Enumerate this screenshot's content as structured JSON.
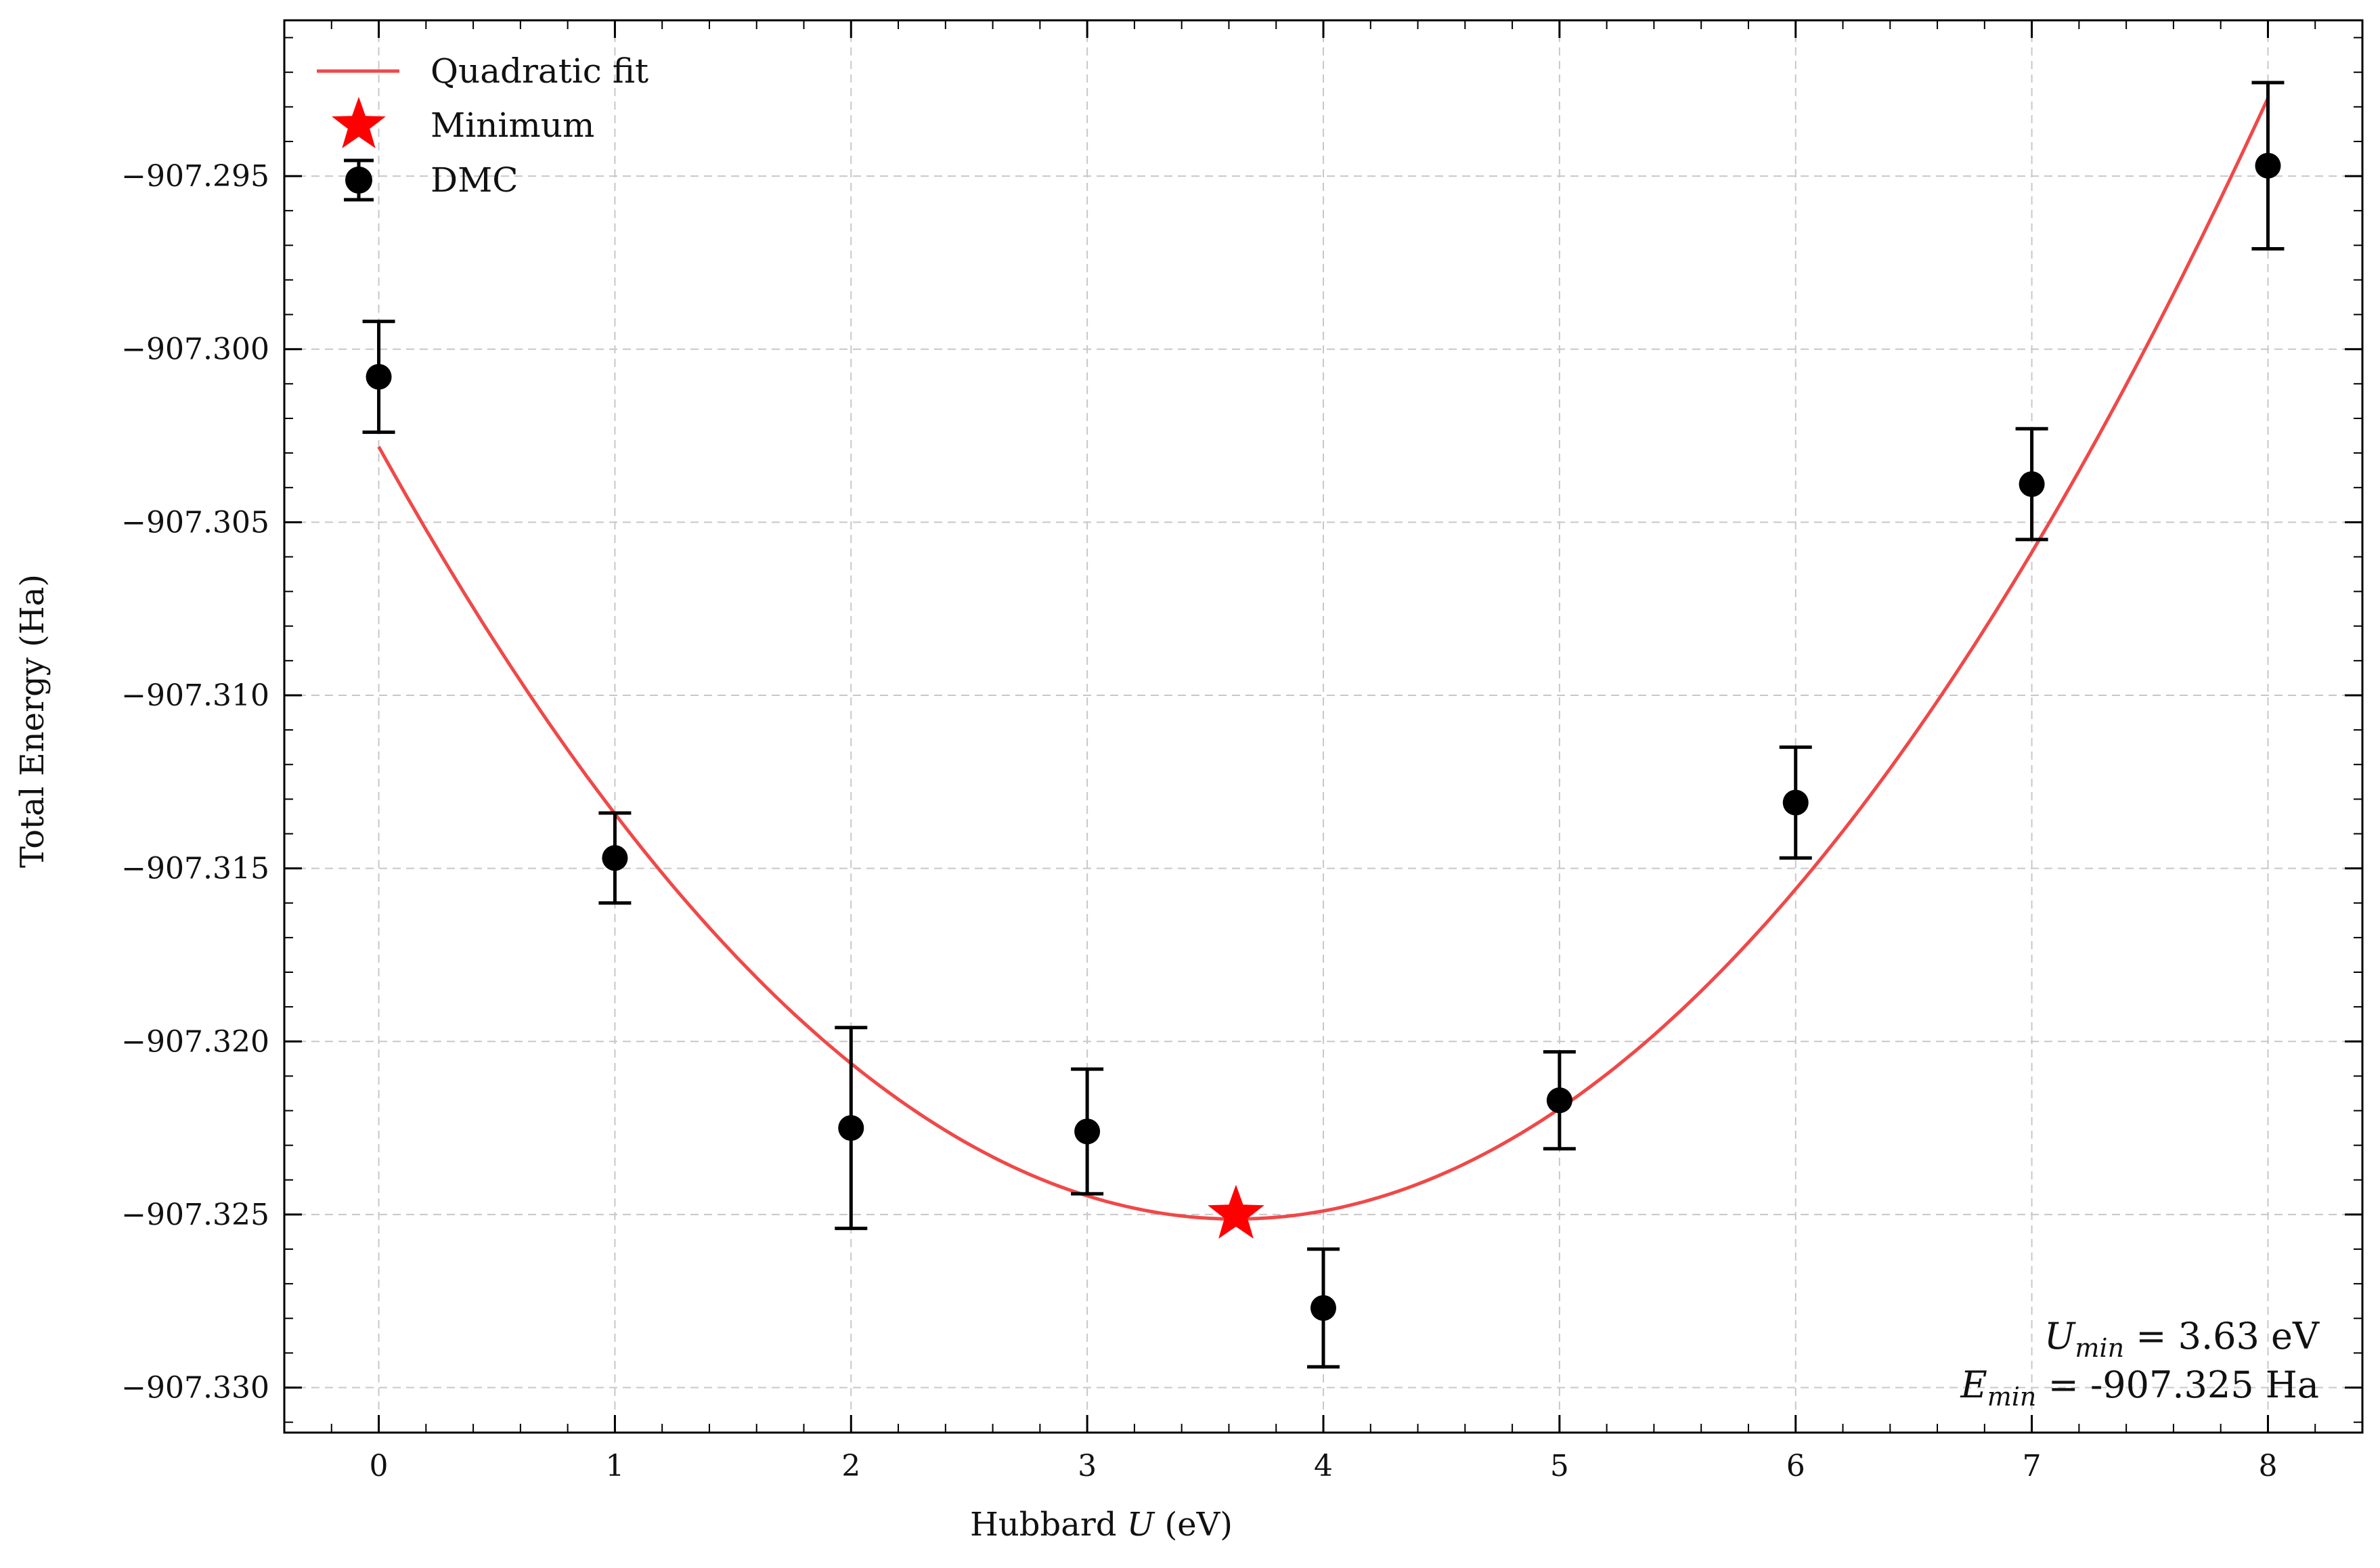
{
  "chart_data": {
    "type": "scatter",
    "xlabel_prefix": "Hubbard ",
    "xlabel_var": "U",
    "xlabel_suffix": " (eV)",
    "ylabel": "Total Energy (Ha)",
    "xlim": [
      -0.4,
      8.4
    ],
    "ylim": [
      -907.3313,
      -907.2905
    ],
    "x_ticks": [
      0,
      1,
      2,
      3,
      4,
      5,
      6,
      7,
      8
    ],
    "y_ticks": [
      -907.295,
      -907.3,
      -907.305,
      -907.31,
      -907.315,
      -907.32,
      -907.325,
      -907.33
    ],
    "y_tick_labels": [
      "−907.295",
      "−907.300",
      "−907.305",
      "−907.310",
      "−907.315",
      "−907.320",
      "−907.325",
      "−907.330"
    ],
    "grid": true,
    "legend_position": "top-left",
    "series": [
      {
        "name": "Quadratic fit",
        "kind": "line",
        "color": "#f04848",
        "coefficients": {
          "a": 0.0016945,
          "b": -0.012297,
          "c": -907.30282
        }
      },
      {
        "name": "Minimum",
        "kind": "marker",
        "marker": "star",
        "color": "#ff0000",
        "x": 3.63,
        "y": -907.325
      },
      {
        "name": "DMC",
        "kind": "errorbar",
        "color": "#000000",
        "x": [
          0,
          1,
          2,
          3,
          4,
          5,
          6,
          7,
          8
        ],
        "y": [
          -907.3008,
          -907.3147,
          -907.3225,
          -907.3226,
          -907.3277,
          -907.3217,
          -907.3131,
          -907.3039,
          -907.2947
        ],
        "yerr": [
          0.0016,
          0.0013,
          0.0029,
          0.0018,
          0.0017,
          0.0014,
          0.0016,
          0.0016,
          0.0024
        ]
      }
    ],
    "annotation": {
      "u_var": "U",
      "u_sub": "min",
      "u_text": " = 3.63 eV",
      "e_var": "E",
      "e_sub": "min",
      "e_text": " = -907.325 Ha",
      "position": "bottom-right"
    }
  }
}
